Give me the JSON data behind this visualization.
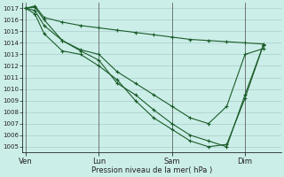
{
  "background_color": "#cceee8",
  "grid_color": "#aacccc",
  "line_color": "#1a5c2a",
  "xlabel": "Pression niveau de la mer( hPa )",
  "ylim": [
    1004.5,
    1017.5
  ],
  "yticks": [
    1005,
    1006,
    1007,
    1008,
    1009,
    1010,
    1011,
    1012,
    1013,
    1014,
    1015,
    1016,
    1017
  ],
  "xtick_labels": [
    "Ven",
    "Lun",
    "Sam",
    "Dim"
  ],
  "xtick_positions": [
    0,
    40,
    80,
    120
  ],
  "xlim": [
    -2,
    140
  ],
  "series_x": [
    [
      0,
      5,
      10,
      20,
      30,
      40,
      50,
      60,
      70,
      80,
      90,
      100,
      110,
      120,
      130
    ],
    [
      0,
      5,
      10,
      20,
      30,
      40,
      50,
      60,
      70,
      80,
      90,
      100,
      110,
      120,
      130
    ],
    [
      0,
      5,
      10,
      20,
      30,
      40,
      50,
      60,
      70,
      80,
      90,
      100,
      110,
      120,
      130
    ],
    [
      0,
      5,
      10,
      20,
      30,
      40,
      50,
      60,
      70,
      80,
      90,
      100,
      110,
      120,
      130
    ]
  ],
  "series": [
    [
      1017.0,
      1017.2,
      1016.2,
      1015.8,
      1015.5,
      1015.3,
      1015.1,
      1014.9,
      1014.7,
      1014.5,
      1014.3,
      1014.2,
      1014.1,
      1014.0,
      1013.9
    ],
    [
      1017.0,
      1017.1,
      1016.0,
      1014.2,
      1013.4,
      1013.0,
      1011.5,
      1010.5,
      1009.5,
      1008.5,
      1007.5,
      1007.0,
      1008.5,
      1013.0,
      1013.5
    ],
    [
      1017.0,
      1016.8,
      1015.5,
      1014.2,
      1013.3,
      1012.5,
      1010.5,
      1009.5,
      1008.2,
      1007.0,
      1006.0,
      1005.5,
      1005.0,
      1009.5,
      1013.8
    ],
    [
      1017.0,
      1016.5,
      1014.8,
      1013.3,
      1013.0,
      1012.0,
      1010.8,
      1009.0,
      1007.5,
      1006.5,
      1005.5,
      1005.0,
      1005.2,
      1009.2,
      1013.8
    ]
  ]
}
